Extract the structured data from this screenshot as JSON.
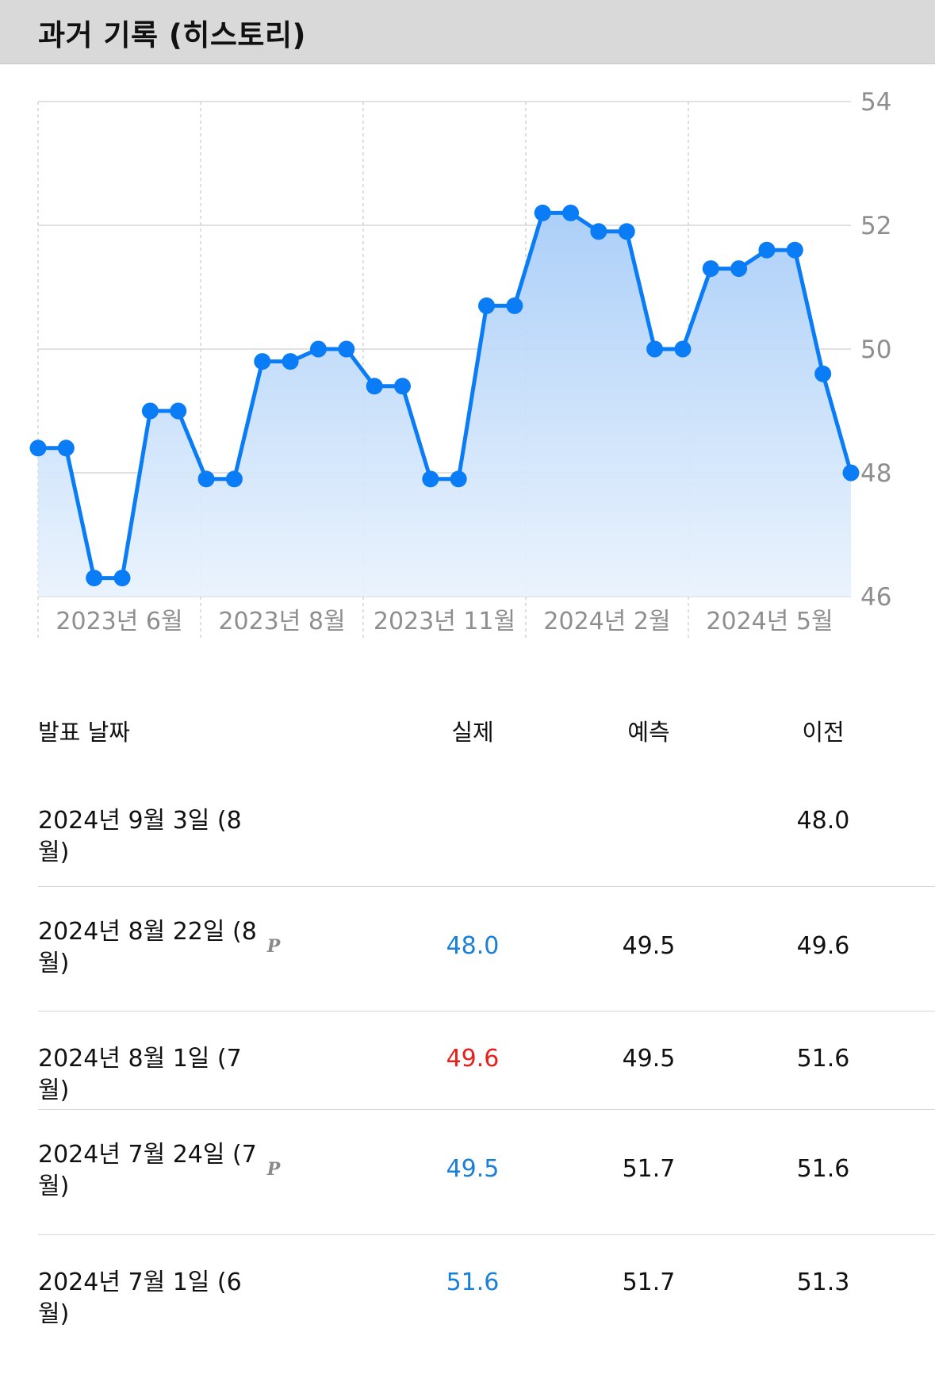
{
  "header": {
    "title": "과거 기록 (히스토리)"
  },
  "chart_data": {
    "type": "area",
    "y_ticks": [
      "54",
      "52",
      "50",
      "48",
      "46"
    ],
    "ylim": [
      46,
      54
    ],
    "x_tick_labels": [
      "2023년 6월",
      "2023년 8월",
      "2023년 11월",
      "2024년 2월",
      "2024년 5월"
    ],
    "values": [
      48.4,
      48.4,
      46.3,
      46.3,
      49.0,
      49.0,
      47.9,
      47.9,
      49.8,
      49.8,
      50.0,
      50.0,
      49.4,
      49.4,
      47.9,
      47.9,
      50.7,
      50.7,
      52.2,
      52.2,
      51.9,
      51.9,
      50.0,
      50.0,
      51.3,
      51.3,
      51.6,
      51.6,
      49.6,
      48.0
    ],
    "grid": true,
    "line_color": "#0a7cf6"
  },
  "table": {
    "headers": {
      "date": "발표 날짜",
      "actual": "실제",
      "forecast": "예측",
      "previous": "이전"
    },
    "rows": [
      {
        "date": "2024년 9월 3일 (8월)",
        "prelim": "",
        "actual": "",
        "actual_color": "#111111",
        "forecast": "",
        "previous": "48.0"
      },
      {
        "date": "2024년 8월 22일 (8월)",
        "prelim": "P",
        "actual": "48.0",
        "actual_color": "#1a7fd8",
        "forecast": "49.5",
        "previous": "49.6"
      },
      {
        "date": "2024년 8월 1일 (7월)",
        "prelim": "",
        "actual": "49.6",
        "actual_color": "#e8201a",
        "forecast": "49.5",
        "previous": "51.6"
      },
      {
        "date": "2024년 7월 24일 (7월)",
        "prelim": "P",
        "actual": "49.5",
        "actual_color": "#1a7fd8",
        "forecast": "51.7",
        "previous": "51.6"
      },
      {
        "date": "2024년 7월 1일 (6월)",
        "prelim": "",
        "actual": "51.6",
        "actual_color": "#1a7fd8",
        "forecast": "51.7",
        "previous": "51.3"
      }
    ]
  }
}
